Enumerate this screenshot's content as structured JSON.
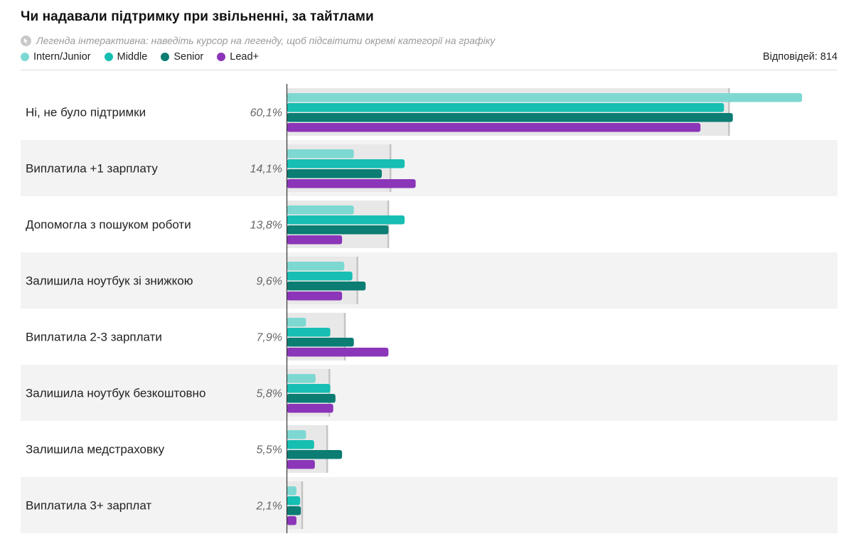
{
  "title": "Чи надавали підтримку при звільненні, за тайтлами",
  "hint": "Легенда інтерактивна: наведіть курсор на легенду, щоб підсвітити окремі категорії на графіку",
  "responses": "Відповідей: 814",
  "colors": {
    "total_bg": "#e8e8e8",
    "total_edge": "#c4c4c4",
    "stripe": "#f3f3f3",
    "axis": "#333333"
  },
  "chart_data": {
    "type": "bar",
    "orientation": "horizontal",
    "title": "Чи надавали підтримку при звільненні, за тайтлами",
    "categories": [
      "Ні, не було підтримки",
      "Виплатила +1 зарплату",
      "Допомогла з пошуком роботи",
      "Залишила ноутбук зі знижкою",
      "Виплатила 2-3 зарплати",
      "Залишила ноутбук безкоштовно",
      "Залишила медстраховку",
      "Виплатила 3+ зарплат"
    ],
    "totals": [
      60.1,
      14.1,
      13.8,
      9.6,
      7.9,
      5.8,
      5.5,
      2.1
    ],
    "total_labels": [
      "60,1%",
      "14,1%",
      "13,8%",
      "9,6%",
      "7,9%",
      "5,8%",
      "5,5%",
      "2,1%"
    ],
    "series": [
      {
        "name": "Intern/Junior",
        "color": "#7dd8d2",
        "values": [
          70.0,
          9.1,
          9.1,
          7.8,
          2.6,
          3.9,
          2.6,
          1.3
        ]
      },
      {
        "name": "Middle",
        "color": "#17beb2",
        "values": [
          59.4,
          16.0,
          16.0,
          8.9,
          5.9,
          5.9,
          3.7,
          1.8
        ]
      },
      {
        "name": "Senior",
        "color": "#0b7d73",
        "values": [
          60.6,
          12.9,
          13.8,
          10.7,
          9.1,
          6.6,
          7.5,
          1.9
        ]
      },
      {
        "name": "Lead+",
        "color": "#8b35b8",
        "values": [
          56.2,
          17.5,
          7.5,
          7.5,
          13.8,
          6.3,
          3.8,
          1.3
        ]
      }
    ],
    "xlim": [
      0,
      70
    ]
  }
}
